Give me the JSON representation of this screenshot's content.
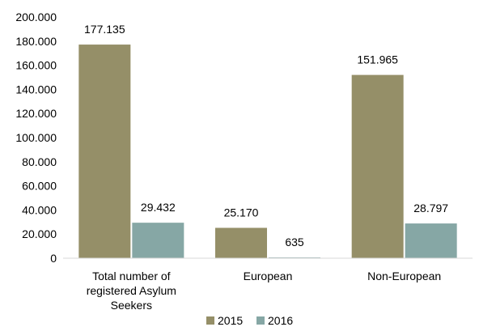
{
  "chart_data": {
    "type": "bar",
    "categories": [
      [
        "Total number of",
        "registered Asylum",
        "Seekers"
      ],
      [
        "European"
      ],
      [
        "Non-European"
      ]
    ],
    "series": [
      {
        "name": "2015",
        "values": [
          177135,
          25170,
          151965
        ],
        "labels": [
          "177.135",
          "25.170",
          "151.965"
        ],
        "color": "#958f68"
      },
      {
        "name": "2016",
        "values": [
          29432,
          635,
          28797
        ],
        "labels": [
          "29.432",
          "635",
          "28.797"
        ],
        "color": "#86a7a5"
      }
    ],
    "ylim": [
      0,
      200000
    ],
    "yticks": [
      0,
      20000,
      40000,
      60000,
      80000,
      100000,
      120000,
      140000,
      160000,
      180000,
      200000
    ],
    "ytick_labels": [
      "0",
      "20.000",
      "40.000",
      "60.000",
      "80.000",
      "100.000",
      "120.000",
      "140.000",
      "160.000",
      "180.000",
      "200.000"
    ],
    "legend": "bottom",
    "grid": false
  }
}
